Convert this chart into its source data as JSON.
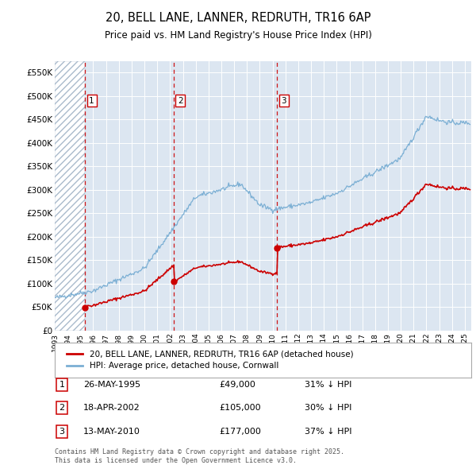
{
  "title": "20, BELL LANE, LANNER, REDRUTH, TR16 6AP",
  "subtitle": "Price paid vs. HM Land Registry's House Price Index (HPI)",
  "background_color": "#ffffff",
  "plot_bg_color": "#dce6f1",
  "sale_color": "#cc0000",
  "hpi_color": "#7bafd4",
  "vline_color": "#cc0000",
  "purchases": [
    {
      "date_num": 1995.38,
      "price": 49000,
      "label": "1"
    },
    {
      "date_num": 2002.29,
      "price": 105000,
      "label": "2"
    },
    {
      "date_num": 2010.36,
      "price": 177000,
      "label": "3"
    }
  ],
  "ylim": [
    0,
    575000
  ],
  "xlim": [
    1993.0,
    2025.5
  ],
  "yticks": [
    0,
    50000,
    100000,
    150000,
    200000,
    250000,
    300000,
    350000,
    400000,
    450000,
    500000,
    550000
  ],
  "ytick_labels": [
    "£0",
    "£50K",
    "£100K",
    "£150K",
    "£200K",
    "£250K",
    "£300K",
    "£350K",
    "£400K",
    "£450K",
    "£500K",
    "£550K"
  ],
  "xticks": [
    1993,
    1994,
    1995,
    1996,
    1997,
    1998,
    1999,
    2000,
    2001,
    2002,
    2003,
    2004,
    2005,
    2006,
    2007,
    2008,
    2009,
    2010,
    2011,
    2012,
    2013,
    2014,
    2015,
    2016,
    2017,
    2018,
    2019,
    2020,
    2021,
    2022,
    2023,
    2024,
    2025
  ],
  "legend_property_label": "20, BELL LANE, LANNER, REDRUTH, TR16 6AP (detached house)",
  "legend_hpi_label": "HPI: Average price, detached house, Cornwall",
  "footer_line1": "Contains HM Land Registry data © Crown copyright and database right 2025.",
  "footer_line2": "This data is licensed under the Open Government Licence v3.0.",
  "table_rows": [
    [
      "1",
      "26-MAY-1995",
      "£49,000",
      "31% ↓ HPI"
    ],
    [
      "2",
      "18-APR-2002",
      "£105,000",
      "30% ↓ HPI"
    ],
    [
      "3",
      "13-MAY-2010",
      "£177,000",
      "37% ↓ HPI"
    ]
  ]
}
